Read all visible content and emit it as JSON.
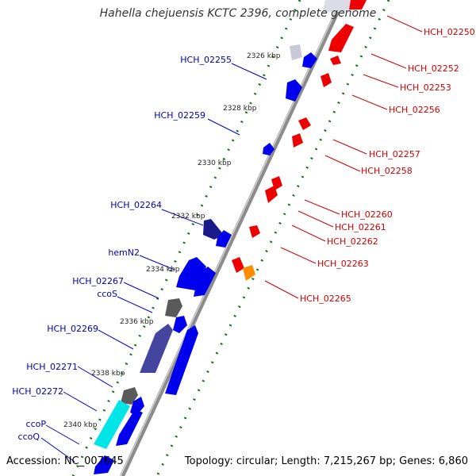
{
  "title": "Hahella chejuensis KCTC 2396, complete genome",
  "footer": {
    "accession": "Accession: NC_007645",
    "topology": "Topology: circular; Length: 7,215,267 bp; Genes: 6,860"
  },
  "colors": {
    "minus_strand": "#0000ee",
    "plus_strand": "#ee0000",
    "highlight": "#ff8c00",
    "tick": "#117711",
    "backbone": "#888888",
    "label_minus": "#0000aa",
    "label_plus": "#cc0000"
  },
  "kbp_ticks": [
    "2326 kbp",
    "2328 kbp",
    "2330 kbp",
    "2332 kbp",
    "2334 kbp",
    "2336 kbp",
    "2338 kbp",
    "2340 kbp"
  ],
  "minus_labels": [
    "HCH_02255",
    "HCH_02259",
    "HCH_02264",
    "hemN2",
    "HCH_02267",
    "ccoS",
    "HCH_02269",
    "HCH_02271",
    "HCH_02272",
    "ccoP",
    "ccoQ"
  ],
  "plus_labels": [
    "HCH_02250",
    "HCH_02252",
    "HCH_02253",
    "HCH_02256",
    "HCH_02257",
    "HCH_02258",
    "HCH_02260",
    "HCH_02261",
    "HCH_02262",
    "HCH_02263",
    "HCH_02265"
  ]
}
